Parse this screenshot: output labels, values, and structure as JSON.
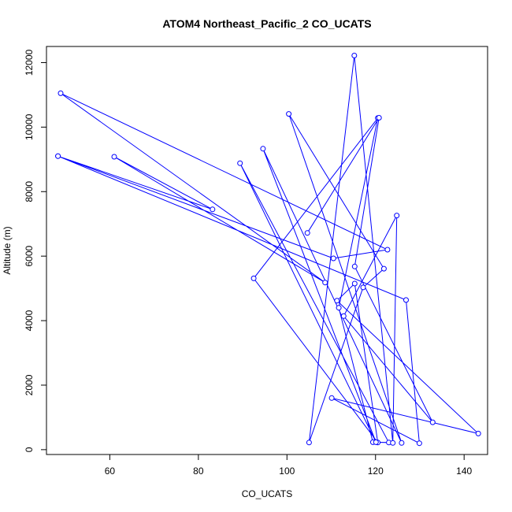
{
  "chart_data": {
    "type": "line",
    "title": "ATOM4 Northeast_Pacific_2 CO_UCATS",
    "xlabel": "CO_UCATS",
    "ylabel": "Altitude (m)",
    "xlim": [
      45.7,
      145.3
    ],
    "ylim": [
      -150,
      12500
    ],
    "xticks": [
      60,
      80,
      100,
      120,
      140
    ],
    "yticks": [
      0,
      2000,
      4000,
      6000,
      8000,
      10000,
      12000
    ],
    "grid": false,
    "legend": "none",
    "color": "#0000ff",
    "series": [
      {
        "x": [
          48.3,
          83.2,
          61.0,
          108.6,
          48.9,
          122.7,
          110.5,
          48.3,
          126.9,
          129.9,
          110.1,
          143.2,
          111.3,
          115.3,
          120.5,
          92.5,
          120.5,
          111.7,
          119.4,
          123.0,
          89.4,
          120.1,
          94.6,
          125.9,
          100.4,
          121.9,
          117.2,
          105.0,
          115.2,
          123.9,
          124.8,
          112.8,
          132.9,
          115.3,
          120.8,
          104.6
        ],
        "y": [
          9100,
          7450,
          9080,
          5180,
          11050,
          6200,
          5930,
          9100,
          4640,
          200,
          1600,
          500,
          4620,
          5150,
          220,
          5310,
          10280,
          4400,
          230,
          220,
          8880,
          230,
          9330,
          210,
          10410,
          5610,
          5030,
          220,
          12220,
          210,
          7260,
          4140,
          850,
          5680,
          10290,
          6720
        ]
      }
    ]
  }
}
